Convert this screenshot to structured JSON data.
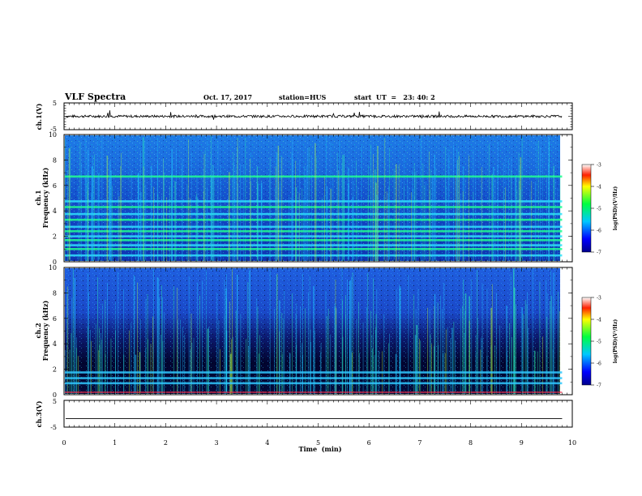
{
  "header": {
    "title": "VLF Spectra",
    "date": "Oct. 17, 2017",
    "station": "station=HUS",
    "start": "start  UT  =   23: 40: 2"
  },
  "chart_data": [
    {
      "type": "line",
      "panel": "ch1-waveform",
      "ylabel": "ch.1(V)",
      "ylim": [
        -5,
        5
      ],
      "yticks": [
        "5",
        "-5"
      ],
      "x": [
        0,
        10
      ],
      "baseline_v": 0,
      "color": "#000000"
    },
    {
      "type": "heatmap",
      "panel": "ch1-spectrogram",
      "ylabel_line1": "ch.1",
      "ylabel_line2": "Frequency  (kHz)",
      "ylim": [
        0,
        10
      ],
      "yticks": [
        "0",
        "2",
        "4",
        "6",
        "8",
        "10"
      ],
      "xlim": [
        0,
        9.8
      ],
      "horizontal_bands_khz": [
        0.5,
        1.0,
        1.3,
        1.7,
        2.0,
        2.4,
        2.75,
        3.3,
        3.75,
        4.3,
        4.75,
        6.7
      ],
      "colorbar": {
        "label": "log(PSD)(V²/Hz)",
        "ticks": [
          "-3",
          "-4",
          "-5",
          "-6",
          "-7"
        ],
        "range": [
          -7,
          -3
        ]
      }
    },
    {
      "type": "heatmap",
      "panel": "ch2-spectrogram",
      "ylabel_line1": "ch.2",
      "ylabel_line2": "Frequency  (kHz)",
      "ylim": [
        0,
        10
      ],
      "yticks": [
        "0",
        "2",
        "4",
        "6",
        "8",
        "10"
      ],
      "xlim": [
        0,
        9.8
      ],
      "horizontal_bands_khz": [
        0.9,
        1.3,
        1.75
      ],
      "colorbar": {
        "label": "log(PSD)(V²/Hz)",
        "ticks": [
          "-3",
          "-4",
          "-5",
          "-6",
          "-7"
        ],
        "range": [
          -7,
          -3
        ]
      }
    },
    {
      "type": "line",
      "panel": "ch3-waveform",
      "ylabel": "ch.3(V)",
      "ylim": [
        -5,
        5
      ],
      "yticks": [
        "5",
        "-5"
      ],
      "x": [
        0,
        9.8
      ],
      "baseline_v": -1.8,
      "color": "#000000"
    }
  ],
  "x_axis": {
    "label": "Time  (min)",
    "ticks": [
      "0",
      "1",
      "2",
      "3",
      "4",
      "5",
      "6",
      "7",
      "8",
      "9",
      "10"
    ],
    "xlim": [
      0,
      10
    ]
  }
}
